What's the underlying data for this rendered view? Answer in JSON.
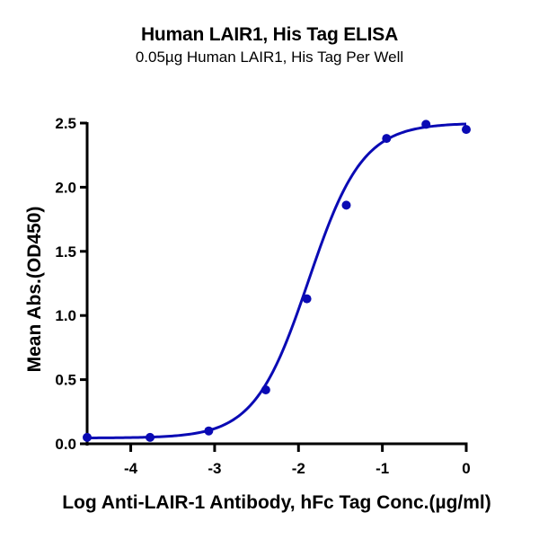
{
  "chart_data": {
    "type": "scatter",
    "title": "Human LAIR1, His Tag ELISA",
    "subtitle": "0.05µg Human LAIR1, His Tag Per Well",
    "xlabel": "Log Anti-LAIR-1 Antibody, hFc Tag Conc.(µg/ml)",
    "ylabel": "Mean Abs.(OD450)",
    "xlim": [
      -4.52,
      0
    ],
    "ylim": [
      0,
      2.5
    ],
    "x_ticks": [
      "-4",
      "-3",
      "-2",
      "-1",
      "0"
    ],
    "y_ticks": [
      "0.0",
      "0.5",
      "1.0",
      "1.5",
      "2.0",
      "2.5"
    ],
    "grid": false,
    "legend": null,
    "series": [
      {
        "name": "Mean Abs.(OD450)",
        "color": "#0a0ab4",
        "x": [
          -4.52,
          -3.77,
          -3.07,
          -2.39,
          -1.9,
          -1.43,
          -0.95,
          -0.48,
          0.0
        ],
        "y": [
          0.05,
          0.05,
          0.1,
          0.42,
          1.13,
          1.86,
          2.38,
          2.49,
          2.45
        ]
      }
    ],
    "fit_curve": {
      "type": "4PL sigmoid",
      "bottom": 0.045,
      "top": 2.5,
      "log_ec50": -1.88,
      "hill": 1.35,
      "color": "#0a0ab4"
    }
  }
}
